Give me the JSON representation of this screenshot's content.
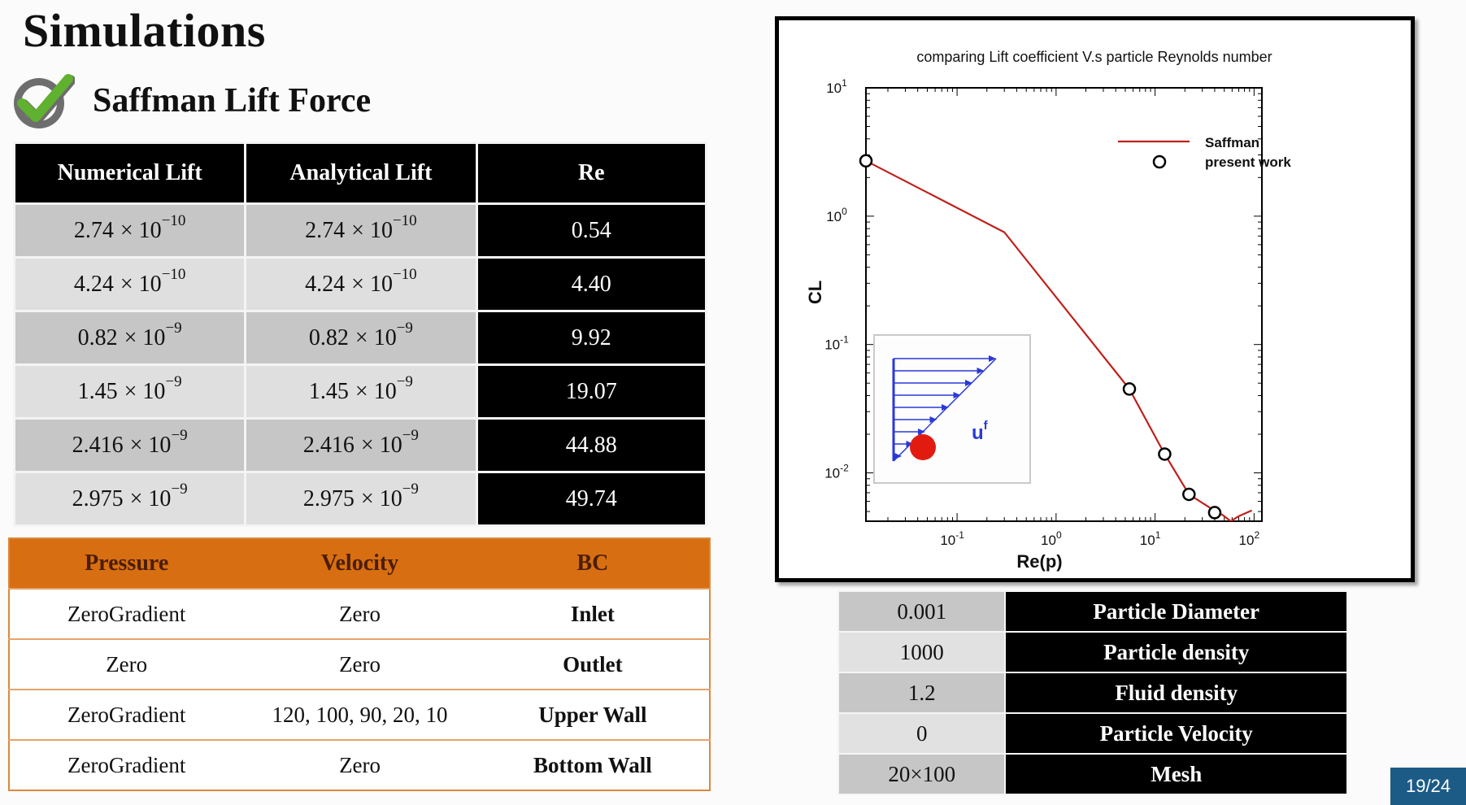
{
  "slide": {
    "title": "Simulations",
    "subtitle": "Saffman Lift Force",
    "page_number": "19/24"
  },
  "lift_table": {
    "headers": [
      "Numerical Lift",
      "Analytical Lift",
      "Re"
    ],
    "rows": [
      {
        "numerical": {
          "coef": "2.74",
          "exp": "−10"
        },
        "analytical": {
          "coef": "2.74",
          "exp": "−10"
        },
        "re": "0.54"
      },
      {
        "numerical": {
          "coef": "4.24",
          "exp": "−10"
        },
        "analytical": {
          "coef": "4.24",
          "exp": "−10"
        },
        "re": "4.40"
      },
      {
        "numerical": {
          "coef": "0.82",
          "exp": "−9"
        },
        "analytical": {
          "coef": "0.82",
          "exp": "−9"
        },
        "re": "9.92"
      },
      {
        "numerical": {
          "coef": "1.45",
          "exp": "−9"
        },
        "analytical": {
          "coef": "1.45",
          "exp": "−9"
        },
        "re": "19.07"
      },
      {
        "numerical": {
          "coef": "2.416",
          "exp": "−9"
        },
        "analytical": {
          "coef": "2.416",
          "exp": "−9"
        },
        "re": "44.88"
      },
      {
        "numerical": {
          "coef": "2.975",
          "exp": "−9"
        },
        "analytical": {
          "coef": "2.975",
          "exp": "−9"
        },
        "re": "49.74"
      }
    ],
    "times_ten": "× 10"
  },
  "bc_table": {
    "headers": [
      "Pressure",
      "Velocity",
      "BC"
    ],
    "rows": [
      {
        "pressure": "ZeroGradient",
        "velocity": "Zero",
        "bc": "Inlet"
      },
      {
        "pressure": "Zero",
        "velocity": "Zero",
        "bc": "Outlet"
      },
      {
        "pressure": "ZeroGradient",
        "velocity": "120, 100, 90, 20, 10",
        "bc": "Upper Wall"
      },
      {
        "pressure": "ZeroGradient",
        "velocity": "Zero",
        "bc": "Bottom Wall"
      }
    ]
  },
  "params_table": {
    "rows": [
      {
        "value": "0.001",
        "label": "Particle Diameter"
      },
      {
        "value": "1000",
        "label": "Particle density"
      },
      {
        "value": "1.2",
        "label": "Fluid density"
      },
      {
        "value": "0",
        "label": "Particle Velocity"
      },
      {
        "value": "20×100",
        "label": "Mesh"
      }
    ]
  },
  "chart_data": {
    "type": "line",
    "title": "comparing Lift coefficient V.s particle Reynolds number",
    "xlabel": "Re(p)",
    "ylabel": "CL",
    "x_scale": "log",
    "y_scale": "log",
    "xlim": [
      0.012,
      120
    ],
    "ylim": [
      0.0042,
      10
    ],
    "x_ticks": [
      {
        "value": 0.1,
        "base": "10",
        "exp": "-1"
      },
      {
        "value": 1,
        "base": "10",
        "exp": "0"
      },
      {
        "value": 10,
        "base": "10",
        "exp": "1"
      },
      {
        "value": 100,
        "base": "10",
        "exp": "2"
      }
    ],
    "y_ticks": [
      {
        "value": 0.01,
        "base": "10",
        "exp": "-2"
      },
      {
        "value": 0.1,
        "base": "10",
        "exp": "-1"
      },
      {
        "value": 1,
        "base": "10",
        "exp": "0"
      },
      {
        "value": 10,
        "base": "10",
        "exp": "1"
      }
    ],
    "legend_position": "top-right",
    "grid": false,
    "series": [
      {
        "name": "Saffman",
        "kind": "line",
        "color": "#c0201c",
        "points": [
          [
            0.012,
            2.7
          ],
          [
            0.3,
            0.75
          ],
          [
            5.5,
            0.045
          ],
          [
            12.5,
            0.014
          ],
          [
            22,
            0.0068
          ],
          [
            38,
            0.0052
          ],
          [
            48,
            0.0047
          ],
          [
            58,
            0.0042
          ],
          [
            70,
            0.0046
          ],
          [
            95,
            0.0051
          ]
        ]
      },
      {
        "name": "present work",
        "kind": "scatter",
        "color": "#000000",
        "points": [
          [
            0.012,
            2.7
          ],
          [
            5.5,
            0.045
          ],
          [
            12.5,
            0.014
          ],
          [
            22,
            0.0068
          ],
          [
            40,
            0.0049
          ]
        ]
      }
    ],
    "inset": {
      "label_base": "u",
      "label_sup": "f"
    }
  }
}
